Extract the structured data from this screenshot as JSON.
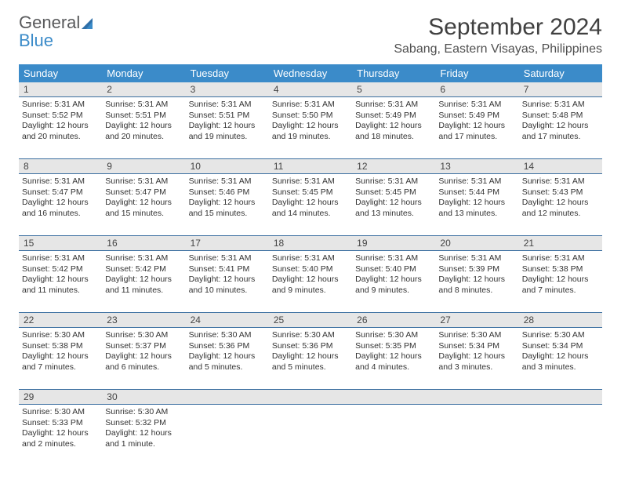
{
  "brand": {
    "word1": "General",
    "word2": "Blue"
  },
  "title": "September 2024",
  "location": "Sabang, Eastern Visayas, Philippines",
  "colors": {
    "header_bg": "#3b8bc9",
    "header_text": "#ffffff",
    "daynum_bg": "#e6e6e6",
    "week_border": "#3b6fa0",
    "body_text": "#333333",
    "logo_gray": "#58595b",
    "logo_blue": "#3b8bc9"
  },
  "typography": {
    "title_fontsize": 30,
    "location_fontsize": 16,
    "dayhead_fontsize": 13,
    "daynum_fontsize": 12,
    "info_fontsize": 10.5
  },
  "day_names": [
    "Sunday",
    "Monday",
    "Tuesday",
    "Wednesday",
    "Thursday",
    "Friday",
    "Saturday"
  ],
  "weeks": [
    [
      {
        "n": "1",
        "sr": "Sunrise: 5:31 AM",
        "ss": "Sunset: 5:52 PM",
        "dl1": "Daylight: 12 hours",
        "dl2": "and 20 minutes."
      },
      {
        "n": "2",
        "sr": "Sunrise: 5:31 AM",
        "ss": "Sunset: 5:51 PM",
        "dl1": "Daylight: 12 hours",
        "dl2": "and 20 minutes."
      },
      {
        "n": "3",
        "sr": "Sunrise: 5:31 AM",
        "ss": "Sunset: 5:51 PM",
        "dl1": "Daylight: 12 hours",
        "dl2": "and 19 minutes."
      },
      {
        "n": "4",
        "sr": "Sunrise: 5:31 AM",
        "ss": "Sunset: 5:50 PM",
        "dl1": "Daylight: 12 hours",
        "dl2": "and 19 minutes."
      },
      {
        "n": "5",
        "sr": "Sunrise: 5:31 AM",
        "ss": "Sunset: 5:49 PM",
        "dl1": "Daylight: 12 hours",
        "dl2": "and 18 minutes."
      },
      {
        "n": "6",
        "sr": "Sunrise: 5:31 AM",
        "ss": "Sunset: 5:49 PM",
        "dl1": "Daylight: 12 hours",
        "dl2": "and 17 minutes."
      },
      {
        "n": "7",
        "sr": "Sunrise: 5:31 AM",
        "ss": "Sunset: 5:48 PM",
        "dl1": "Daylight: 12 hours",
        "dl2": "and 17 minutes."
      }
    ],
    [
      {
        "n": "8",
        "sr": "Sunrise: 5:31 AM",
        "ss": "Sunset: 5:47 PM",
        "dl1": "Daylight: 12 hours",
        "dl2": "and 16 minutes."
      },
      {
        "n": "9",
        "sr": "Sunrise: 5:31 AM",
        "ss": "Sunset: 5:47 PM",
        "dl1": "Daylight: 12 hours",
        "dl2": "and 15 minutes."
      },
      {
        "n": "10",
        "sr": "Sunrise: 5:31 AM",
        "ss": "Sunset: 5:46 PM",
        "dl1": "Daylight: 12 hours",
        "dl2": "and 15 minutes."
      },
      {
        "n": "11",
        "sr": "Sunrise: 5:31 AM",
        "ss": "Sunset: 5:45 PM",
        "dl1": "Daylight: 12 hours",
        "dl2": "and 14 minutes."
      },
      {
        "n": "12",
        "sr": "Sunrise: 5:31 AM",
        "ss": "Sunset: 5:45 PM",
        "dl1": "Daylight: 12 hours",
        "dl2": "and 13 minutes."
      },
      {
        "n": "13",
        "sr": "Sunrise: 5:31 AM",
        "ss": "Sunset: 5:44 PM",
        "dl1": "Daylight: 12 hours",
        "dl2": "and 13 minutes."
      },
      {
        "n": "14",
        "sr": "Sunrise: 5:31 AM",
        "ss": "Sunset: 5:43 PM",
        "dl1": "Daylight: 12 hours",
        "dl2": "and 12 minutes."
      }
    ],
    [
      {
        "n": "15",
        "sr": "Sunrise: 5:31 AM",
        "ss": "Sunset: 5:42 PM",
        "dl1": "Daylight: 12 hours",
        "dl2": "and 11 minutes."
      },
      {
        "n": "16",
        "sr": "Sunrise: 5:31 AM",
        "ss": "Sunset: 5:42 PM",
        "dl1": "Daylight: 12 hours",
        "dl2": "and 11 minutes."
      },
      {
        "n": "17",
        "sr": "Sunrise: 5:31 AM",
        "ss": "Sunset: 5:41 PM",
        "dl1": "Daylight: 12 hours",
        "dl2": "and 10 minutes."
      },
      {
        "n": "18",
        "sr": "Sunrise: 5:31 AM",
        "ss": "Sunset: 5:40 PM",
        "dl1": "Daylight: 12 hours",
        "dl2": "and 9 minutes."
      },
      {
        "n": "19",
        "sr": "Sunrise: 5:31 AM",
        "ss": "Sunset: 5:40 PM",
        "dl1": "Daylight: 12 hours",
        "dl2": "and 9 minutes."
      },
      {
        "n": "20",
        "sr": "Sunrise: 5:31 AM",
        "ss": "Sunset: 5:39 PM",
        "dl1": "Daylight: 12 hours",
        "dl2": "and 8 minutes."
      },
      {
        "n": "21",
        "sr": "Sunrise: 5:31 AM",
        "ss": "Sunset: 5:38 PM",
        "dl1": "Daylight: 12 hours",
        "dl2": "and 7 minutes."
      }
    ],
    [
      {
        "n": "22",
        "sr": "Sunrise: 5:30 AM",
        "ss": "Sunset: 5:38 PM",
        "dl1": "Daylight: 12 hours",
        "dl2": "and 7 minutes."
      },
      {
        "n": "23",
        "sr": "Sunrise: 5:30 AM",
        "ss": "Sunset: 5:37 PM",
        "dl1": "Daylight: 12 hours",
        "dl2": "and 6 minutes."
      },
      {
        "n": "24",
        "sr": "Sunrise: 5:30 AM",
        "ss": "Sunset: 5:36 PM",
        "dl1": "Daylight: 12 hours",
        "dl2": "and 5 minutes."
      },
      {
        "n": "25",
        "sr": "Sunrise: 5:30 AM",
        "ss": "Sunset: 5:36 PM",
        "dl1": "Daylight: 12 hours",
        "dl2": "and 5 minutes."
      },
      {
        "n": "26",
        "sr": "Sunrise: 5:30 AM",
        "ss": "Sunset: 5:35 PM",
        "dl1": "Daylight: 12 hours",
        "dl2": "and 4 minutes."
      },
      {
        "n": "27",
        "sr": "Sunrise: 5:30 AM",
        "ss": "Sunset: 5:34 PM",
        "dl1": "Daylight: 12 hours",
        "dl2": "and 3 minutes."
      },
      {
        "n": "28",
        "sr": "Sunrise: 5:30 AM",
        "ss": "Sunset: 5:34 PM",
        "dl1": "Daylight: 12 hours",
        "dl2": "and 3 minutes."
      }
    ],
    [
      {
        "n": "29",
        "sr": "Sunrise: 5:30 AM",
        "ss": "Sunset: 5:33 PM",
        "dl1": "Daylight: 12 hours",
        "dl2": "and 2 minutes."
      },
      {
        "n": "30",
        "sr": "Sunrise: 5:30 AM",
        "ss": "Sunset: 5:32 PM",
        "dl1": "Daylight: 12 hours",
        "dl2": "and 1 minute."
      },
      null,
      null,
      null,
      null,
      null
    ]
  ]
}
